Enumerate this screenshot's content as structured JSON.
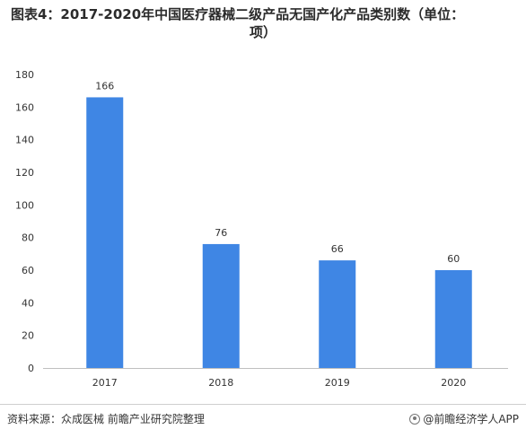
{
  "title_line1": "图表4：2017-2020年中国医疗器械二级产品无国产化产品类别数（单位：",
  "title_line2": "项）",
  "source": "资料来源：众成医械 前瞻产业研究院整理",
  "brand": "@前瞻经济学人APP",
  "colors": {
    "bar": "#3f86e4",
    "axis": "#bfbfbf",
    "text": "#333333"
  },
  "chart_data": {
    "type": "bar",
    "title": "图表4：2017-2020年中国医疗器械二级产品无国产化产品类别数（单位：项）",
    "categories": [
      "2017",
      "2018",
      "2019",
      "2020"
    ],
    "values": [
      166,
      76,
      66,
      60
    ],
    "data_labels": [
      "166",
      "76",
      "66",
      "60"
    ],
    "ylim": [
      0,
      180
    ],
    "yticks": [
      0,
      20,
      40,
      60,
      80,
      100,
      120,
      140,
      160,
      180
    ],
    "xlabel": "",
    "ylabel": "",
    "grid": false,
    "legend": "none"
  }
}
